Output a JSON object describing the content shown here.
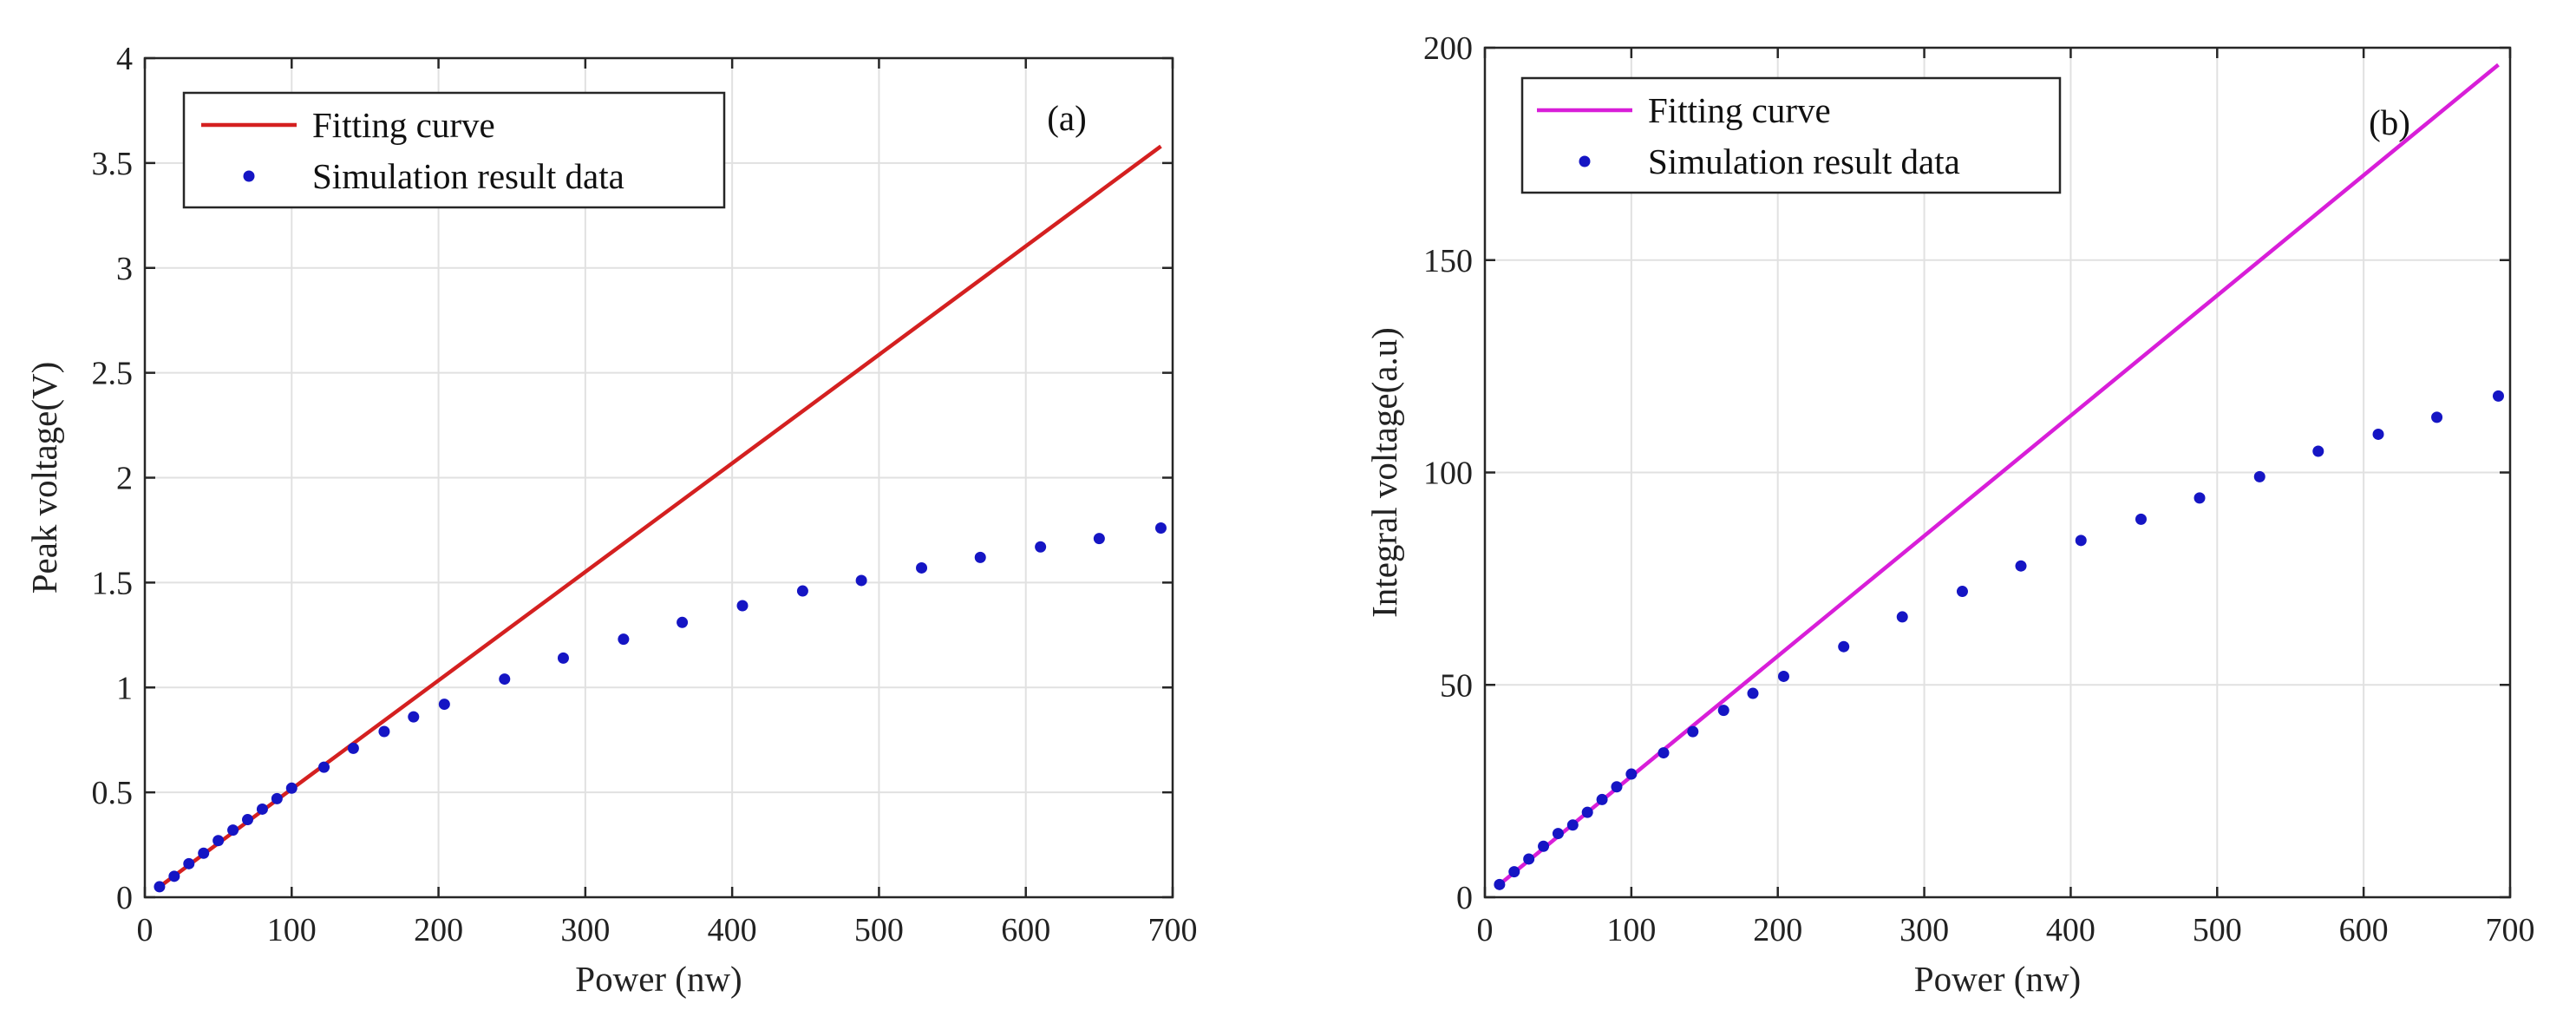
{
  "chart_data": [
    {
      "type": "line+scatter",
      "panel_label": "(a)",
      "xlabel": "Power (nw)",
      "ylabel": "Peak voltage(V)",
      "xlim": [
        0,
        700
      ],
      "ylim": [
        0,
        4
      ],
      "xticks": [
        0,
        100,
        200,
        300,
        400,
        500,
        600,
        700
      ],
      "yticks": [
        0,
        0.5,
        1,
        1.5,
        2,
        2.5,
        3,
        3.5,
        4
      ],
      "ytick_labels": [
        "0",
        "0.5",
        "1",
        "1.5",
        "2",
        "2.5",
        "3",
        "3.5",
        "4"
      ],
      "grid": true,
      "legend_position": "top-left",
      "series": [
        {
          "name": "Fitting curve",
          "kind": "line",
          "color": "#d42020",
          "x": [
            10,
            692
          ],
          "y": [
            0.05,
            3.58
          ]
        },
        {
          "name": "Simulation result data",
          "kind": "scatter",
          "color": "#1515c4",
          "x": [
            10,
            20,
            30,
            40,
            50,
            60,
            70,
            80,
            90,
            100,
            122,
            142,
            163,
            183,
            204,
            245,
            285,
            326,
            366,
            407,
            448,
            488,
            529,
            569,
            610,
            650,
            692
          ],
          "y": [
            0.05,
            0.1,
            0.16,
            0.21,
            0.27,
            0.32,
            0.37,
            0.42,
            0.47,
            0.52,
            0.62,
            0.71,
            0.79,
            0.86,
            0.92,
            1.04,
            1.14,
            1.23,
            1.31,
            1.39,
            1.46,
            1.51,
            1.57,
            1.62,
            1.67,
            1.71,
            1.76
          ]
        }
      ]
    },
    {
      "type": "line+scatter",
      "panel_label": "(b)",
      "xlabel": "Power (nw)",
      "ylabel": "Integral voltage(a.u)",
      "xlim": [
        0,
        700
      ],
      "ylim": [
        0,
        200
      ],
      "xticks": [
        0,
        100,
        200,
        300,
        400,
        500,
        600,
        700
      ],
      "yticks": [
        0,
        50,
        100,
        150,
        200
      ],
      "ytick_labels": [
        "0",
        "50",
        "100",
        "150",
        "200"
      ],
      "grid": true,
      "legend_position": "top-left",
      "series": [
        {
          "name": "Fitting curve",
          "kind": "line",
          "color": "#d81ed8",
          "x": [
            10,
            692
          ],
          "y": [
            3,
            196
          ]
        },
        {
          "name": "Simulation result data",
          "kind": "scatter",
          "color": "#1515c4",
          "x": [
            10,
            20,
            30,
            40,
            50,
            60,
            70,
            80,
            90,
            100,
            122,
            142,
            163,
            183,
            204,
            245,
            285,
            326,
            366,
            407,
            448,
            488,
            529,
            569,
            610,
            650,
            692
          ],
          "y": [
            3,
            6,
            9,
            12,
            15,
            17,
            20,
            23,
            26,
            29,
            34,
            39,
            44,
            48,
            52,
            59,
            66,
            72,
            78,
            84,
            89,
            94,
            99,
            105,
            109,
            113,
            118
          ]
        }
      ]
    }
  ]
}
